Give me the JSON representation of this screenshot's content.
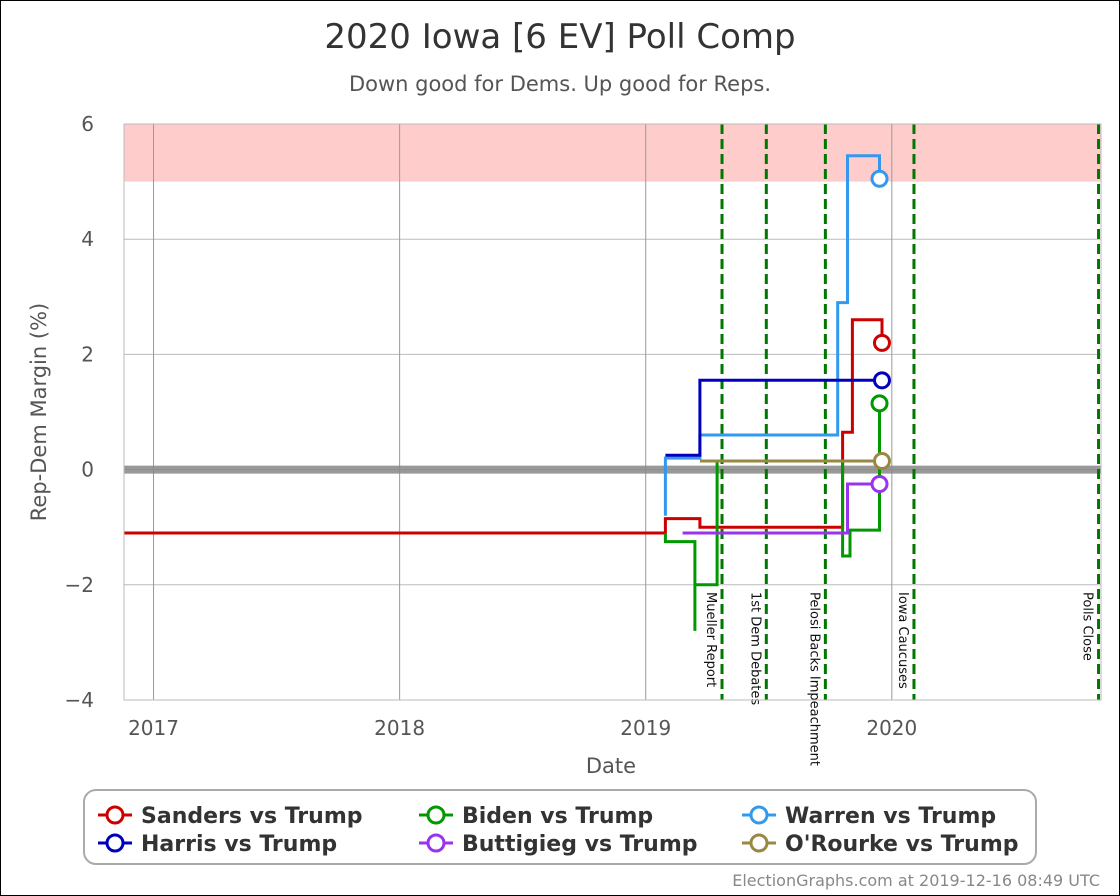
{
  "chart_data": {
    "type": "line",
    "title": "2020 Iowa [6 EV] Poll Comp",
    "subtitle": "Down good for Dems. Up good for Reps.",
    "xlabel": "Date",
    "ylabel": "Rep-Dem Margin (%)",
    "xlim": [
      2016.88,
      2020.85
    ],
    "ylim": [
      -4,
      6
    ],
    "x_ticks": [
      2017,
      2018,
      2019,
      2020
    ],
    "y_ticks": [
      -4,
      -2,
      0,
      2,
      4,
      6
    ],
    "y_tick_labels": [
      "−4",
      "−2",
      "0",
      "2",
      "4",
      "6"
    ],
    "grid": true,
    "shaded_band": {
      "from": 5,
      "to": 6,
      "color": "#ffcccc"
    },
    "zero_line_color": "#888888",
    "events": [
      {
        "label": "Mueller Report",
        "x": 2019.31
      },
      {
        "label": "1st Dem Debates",
        "x": 2019.49
      },
      {
        "label": "Pelosi Backs Impeachment",
        "x": 2019.73
      },
      {
        "label": "Iowa Caucuses",
        "x": 2020.09
      },
      {
        "label": "Polls Close",
        "x": 2020.84
      }
    ],
    "event_color": "#007700",
    "series": [
      {
        "name": "Sanders vs Trump",
        "color": "#cc0000",
        "points": [
          [
            2016.88,
            -1.1
          ],
          [
            2019.08,
            -1.1
          ],
          [
            2019.08,
            -0.85
          ],
          [
            2019.22,
            -0.85
          ],
          [
            2019.22,
            -1.0
          ],
          [
            2019.8,
            -1.0
          ],
          [
            2019.8,
            0.65
          ],
          [
            2019.84,
            0.65
          ],
          [
            2019.84,
            2.6
          ],
          [
            2019.96,
            2.6
          ],
          [
            2019.96,
            2.2
          ]
        ],
        "end": [
          2019.96,
          2.2
        ]
      },
      {
        "name": "Biden vs Trump",
        "color": "#009900",
        "points": [
          [
            2019.08,
            -1.1
          ],
          [
            2019.08,
            -1.25
          ],
          [
            2019.2,
            -1.25
          ],
          [
            2019.2,
            -2.8
          ],
          [
            2019.2,
            -2.0
          ],
          [
            2019.29,
            -2.0
          ],
          [
            2019.29,
            0.15
          ],
          [
            2019.8,
            0.15
          ],
          [
            2019.8,
            -1.5
          ],
          [
            2019.83,
            -1.5
          ],
          [
            2019.83,
            -1.05
          ],
          [
            2019.95,
            -1.05
          ],
          [
            2019.95,
            1.15
          ]
        ],
        "end": [
          2019.95,
          1.15
        ]
      },
      {
        "name": "Warren vs Trump",
        "color": "#3399ee",
        "points": [
          [
            2019.08,
            -0.8
          ],
          [
            2019.08,
            0.2
          ],
          [
            2019.22,
            0.2
          ],
          [
            2019.22,
            0.6
          ],
          [
            2019.78,
            0.6
          ],
          [
            2019.78,
            2.9
          ],
          [
            2019.82,
            2.9
          ],
          [
            2019.82,
            5.45
          ],
          [
            2019.95,
            5.45
          ],
          [
            2019.95,
            5.05
          ]
        ],
        "end": [
          2019.95,
          5.05
        ]
      },
      {
        "name": "Harris vs Trump",
        "color": "#0000bb",
        "points": [
          [
            2019.08,
            0.25
          ],
          [
            2019.22,
            0.25
          ],
          [
            2019.22,
            1.55
          ],
          [
            2019.96,
            1.55
          ]
        ],
        "end": [
          2019.96,
          1.55
        ]
      },
      {
        "name": "Buttigieg vs Trump",
        "color": "#9933ee",
        "points": [
          [
            2019.15,
            -1.1
          ],
          [
            2019.82,
            -1.1
          ],
          [
            2019.82,
            -0.25
          ],
          [
            2019.95,
            -0.25
          ]
        ],
        "end": [
          2019.95,
          -0.25
        ]
      },
      {
        "name": "O'Rourke vs Trump",
        "color": "#998844",
        "points": [
          [
            2019.22,
            0.15
          ],
          [
            2019.96,
            0.15
          ]
        ],
        "end": [
          2019.96,
          0.15
        ]
      }
    ],
    "legend": {
      "placement": "bottom"
    }
  },
  "credit": "ElectionGraphs.com at 2019-12-16 08:49 UTC"
}
